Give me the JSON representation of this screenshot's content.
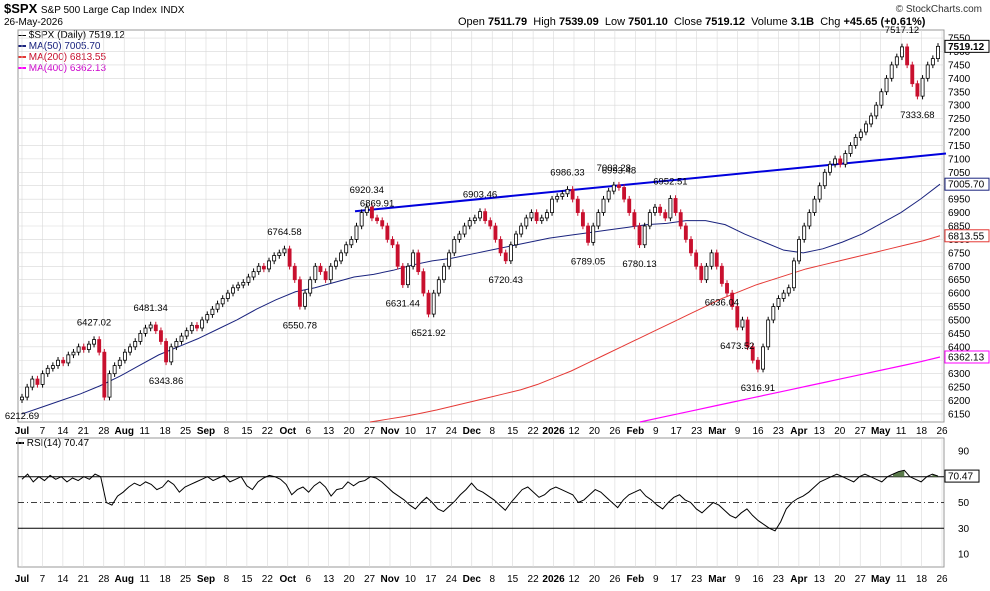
{
  "header": {
    "symbol": "$SPX",
    "name": "S&P 500 Large Cap Index",
    "exchange": "INDX",
    "date": "26-May-2026",
    "copyright": "© StockCharts.com",
    "open_label": "Open",
    "open": "7511.79",
    "high_label": "High",
    "high": "7539.09",
    "low_label": "Low",
    "low": "7501.10",
    "close_label": "Close",
    "close": "7519.12",
    "volume_label": "Volume",
    "volume": "3.1B",
    "chg_label": "Chg",
    "chg": "+45.65 (+0.61%)"
  },
  "legend": {
    "price": "$SPX (Daily) 7519.12",
    "ma50": "MA(50) 7005.70",
    "ma200": "MA(200) 6813.55",
    "ma400": "MA(400) 6362.13",
    "rsi": "RSI(14) 70.47"
  },
  "colors": {
    "up": "#000000",
    "down": "#c8102e",
    "ma50": "#1a237e",
    "ma200": "#e53935",
    "ma400": "#ff00ff",
    "trendline": "#0000dd",
    "rsi_fill": "#5a7a4a",
    "grid": "#d8d8d8"
  },
  "chart_data": [
    {
      "type": "candlestick",
      "title": "$SPX S&P 500 Large Cap Index INDX",
      "y_ticks": [
        6150,
        6200,
        6250,
        6300,
        6350,
        6400,
        6450,
        6500,
        6550,
        6600,
        6650,
        6700,
        6750,
        6800,
        6850,
        6900,
        6950,
        7000,
        7050,
        7100,
        7150,
        7200,
        7250,
        7300,
        7350,
        7400,
        7450,
        7500,
        7550
      ],
      "ylim": [
        6120,
        7580
      ],
      "x_ticks": [
        "Jul",
        "7",
        "14",
        "21",
        "28",
        "Aug",
        "11",
        "18",
        "25",
        "Sep",
        "8",
        "15",
        "22",
        "Oct",
        "6",
        "13",
        "20",
        "27",
        "Nov",
        "10",
        "17",
        "24",
        "Dec",
        "8",
        "15",
        "22",
        "2026",
        "12",
        "20",
        "26",
        "Feb",
        "9",
        "17",
        "23",
        "Mar",
        "9",
        "16",
        "23",
        "Apr",
        "13",
        "20",
        "27",
        "May",
        "11",
        "18",
        "26"
      ],
      "right_axis_labels": [
        {
          "label": "7519.12",
          "value": 7519.12
        },
        {
          "label": "7005.70",
          "value": 7005.7
        },
        {
          "label": "6813.55",
          "value": 6813.55
        },
        {
          "label": "6362.13",
          "value": 6362.13
        }
      ],
      "annotations": [
        {
          "text": "6212.69",
          "value": 6212.69,
          "kind": "low"
        },
        {
          "text": "6427.02",
          "value": 6427.02,
          "kind": "high"
        },
        {
          "text": "6481.34",
          "value": 6481.34,
          "kind": "high"
        },
        {
          "text": "6343.86",
          "value": 6343.86,
          "kind": "low"
        },
        {
          "text": "6764.58",
          "value": 6764.58,
          "kind": "high"
        },
        {
          "text": "6550.78",
          "value": 6550.78,
          "kind": "low"
        },
        {
          "text": "6920.34",
          "value": 6920.34,
          "kind": "high"
        },
        {
          "text": "6869.91",
          "value": 6869.91,
          "kind": "high"
        },
        {
          "text": "6631.44",
          "value": 6631.44,
          "kind": "low"
        },
        {
          "text": "6521.92",
          "value": 6521.92,
          "kind": "low"
        },
        {
          "text": "6903.46",
          "value": 6903.46,
          "kind": "high"
        },
        {
          "text": "6720.43",
          "value": 6720.43,
          "kind": "low"
        },
        {
          "text": "6986.33",
          "value": 6986.33,
          "kind": "high"
        },
        {
          "text": "6789.05",
          "value": 6789.05,
          "kind": "low"
        },
        {
          "text": "7002.28",
          "value": 7002.28,
          "kind": "high"
        },
        {
          "text": "6993.48",
          "value": 6993.48,
          "kind": "high"
        },
        {
          "text": "6780.13",
          "value": 6780.13,
          "kind": "low"
        },
        {
          "text": "6952.51",
          "value": 6952.51,
          "kind": "high"
        },
        {
          "text": "6636.04",
          "value": 6636.04,
          "kind": "low"
        },
        {
          "text": "6473.52",
          "value": 6473.52,
          "kind": "low"
        },
        {
          "text": "6316.91",
          "value": 6316.91,
          "kind": "low"
        },
        {
          "text": "7517.12",
          "value": 7517.12,
          "kind": "high"
        },
        {
          "text": "7333.68",
          "value": 7333.68,
          "kind": "low"
        }
      ],
      "series": [
        {
          "name": "$SPX (Daily)",
          "key": "price",
          "values": [
            6212.69,
            6250,
            6280,
            6260,
            6300,
            6320,
            6330,
            6350,
            6340,
            6370,
            6380,
            6400,
            6390,
            6410,
            6427.02,
            6380,
            6212.69,
            6300,
            6330,
            6350,
            6380,
            6400,
            6420,
            6450,
            6470,
            6481.34,
            6460,
            6420,
            6343.86,
            6400,
            6420,
            6440,
            6460,
            6480,
            6470,
            6500,
            6520,
            6540,
            6560,
            6580,
            6600,
            6620,
            6630,
            6640,
            6660,
            6680,
            6700,
            6690,
            6720,
            6740,
            6750,
            6764.58,
            6700,
            6650,
            6550.78,
            6600,
            6650,
            6700,
            6680,
            6650,
            6700,
            6720,
            6750,
            6780,
            6800,
            6850,
            6900,
            6920.34,
            6880,
            6869.91,
            6850,
            6800,
            6780,
            6700,
            6631.44,
            6700,
            6750,
            6680,
            6600,
            6521.92,
            6600,
            6650,
            6700,
            6750,
            6800,
            6820,
            6850,
            6870,
            6880,
            6903.46,
            6870,
            6850,
            6800,
            6750,
            6720.43,
            6780,
            6820,
            6850,
            6880,
            6900,
            6870,
            6880,
            6900,
            6950,
            6960,
            6970,
            6986.33,
            6950,
            6900,
            6850,
            6789.05,
            6850,
            6900,
            6950,
            6980,
            7002.28,
            6993.48,
            6950,
            6900,
            6850,
            6780.13,
            6850,
            6900,
            6920,
            6900,
            6880,
            6952.51,
            6900,
            6850,
            6800,
            6750,
            6700,
            6650,
            6700,
            6750,
            6700,
            6636.04,
            6600,
            6550,
            6473.52,
            6500,
            6400,
            6350,
            6316.91,
            6400,
            6500,
            6550,
            6580,
            6600,
            6620,
            6720,
            6800,
            6850,
            6900,
            6950,
            7000,
            7050,
            7080,
            7100,
            7080,
            7120,
            7150,
            7180,
            7200,
            7230,
            7260,
            7300,
            7350,
            7400,
            7450,
            7480,
            7517.12,
            7450,
            7380,
            7333.68,
            7400,
            7450,
            7473.47,
            7519.12
          ]
        },
        {
          "name": "MA(50)",
          "key": "ma50",
          "values": [
            6150,
            6175,
            6200,
            6225,
            6255,
            6290,
            6330,
            6370,
            6400,
            6430,
            6465,
            6500,
            6540,
            6575,
            6605,
            6620,
            6640,
            6660,
            6670,
            6685,
            6705,
            6720,
            6730,
            6745,
            6760,
            6775,
            6790,
            6805,
            6815,
            6825,
            6835,
            6845,
            6855,
            6860,
            6870,
            6870,
            6855,
            6820,
            6790,
            6760,
            6750,
            6765,
            6790,
            6820,
            6860,
            6900,
            6950,
            7005.7
          ]
        },
        {
          "name": "MA(200)",
          "key": "ma200",
          "values": [
            6120,
            6130,
            6140,
            6152,
            6165,
            6180,
            6195,
            6210,
            6225,
            6240,
            6260,
            6285,
            6310,
            6340,
            6370,
            6400,
            6430,
            6460,
            6490,
            6520,
            6550,
            6580,
            6605,
            6630,
            6650,
            6670,
            6690,
            6705,
            6720,
            6735,
            6750,
            6765,
            6780,
            6795,
            6813.55
          ]
        },
        {
          "name": "MA(400)",
          "key": "ma400",
          "values": [
            6120,
            6135,
            6150,
            6165,
            6180,
            6195,
            6210,
            6225,
            6240,
            6255,
            6270,
            6285,
            6300,
            6315,
            6330,
            6345,
            6362.13
          ]
        },
        {
          "name": "Trendline",
          "key": "trend",
          "values": [
            6905,
            7120
          ]
        }
      ]
    },
    {
      "type": "line",
      "title": "RSI(14) 70.47",
      "y_ticks": [
        10,
        30,
        50,
        70,
        90
      ],
      "ylim": [
        0,
        100
      ],
      "reference_lines": [
        70,
        50,
        30
      ],
      "right_axis_labels": [
        {
          "label": "70.47",
          "value": 70.47
        }
      ],
      "series": [
        {
          "name": "RSI(14)",
          "values": [
            68,
            72,
            66,
            70,
            67,
            71,
            68,
            70,
            66,
            69,
            67,
            70,
            68,
            72,
            70,
            50,
            48,
            55,
            58,
            62,
            65,
            63,
            66,
            64,
            60,
            62,
            67,
            64,
            58,
            62,
            64,
            66,
            68,
            70,
            67,
            69,
            71,
            66,
            68,
            70,
            63,
            60,
            66,
            69,
            71,
            70,
            68,
            64,
            56,
            60,
            62,
            58,
            63,
            66,
            62,
            55,
            60,
            61,
            66,
            63,
            66,
            67,
            70,
            69,
            66,
            62,
            58,
            55,
            52,
            48,
            45,
            50,
            54,
            50,
            45,
            43,
            47,
            51,
            56,
            60,
            65,
            60,
            58,
            55,
            52,
            48,
            44,
            50,
            55,
            60,
            62,
            58,
            54,
            56,
            60,
            62,
            60,
            58,
            56,
            50,
            52,
            56,
            60,
            58,
            54,
            50,
            46,
            52,
            56,
            58,
            60,
            55,
            52,
            48,
            45,
            50,
            54,
            56,
            52,
            50,
            45,
            42,
            46,
            50,
            48,
            44,
            40,
            38,
            42,
            45,
            40,
            36,
            33,
            30,
            28,
            35,
            45,
            50,
            53,
            55,
            58,
            62,
            66,
            68,
            70,
            72,
            70,
            68,
            66,
            70,
            72,
            70,
            68,
            66,
            70,
            72,
            74,
            75,
            70,
            68,
            66,
            70,
            72,
            70.47
          ]
        }
      ]
    }
  ]
}
